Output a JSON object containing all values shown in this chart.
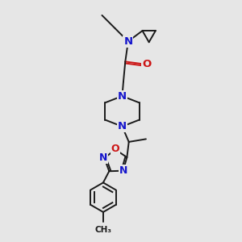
{
  "bg_color": "#e6e6e6",
  "bond_color": "#1a1a1a",
  "N_color": "#1515cc",
  "O_color": "#cc1515",
  "font_size": 9.0,
  "bond_width": 1.4,
  "figsize": [
    3.0,
    3.0
  ],
  "dpi": 100,
  "xlim": [
    0,
    10
  ],
  "ylim": [
    0,
    10
  ]
}
